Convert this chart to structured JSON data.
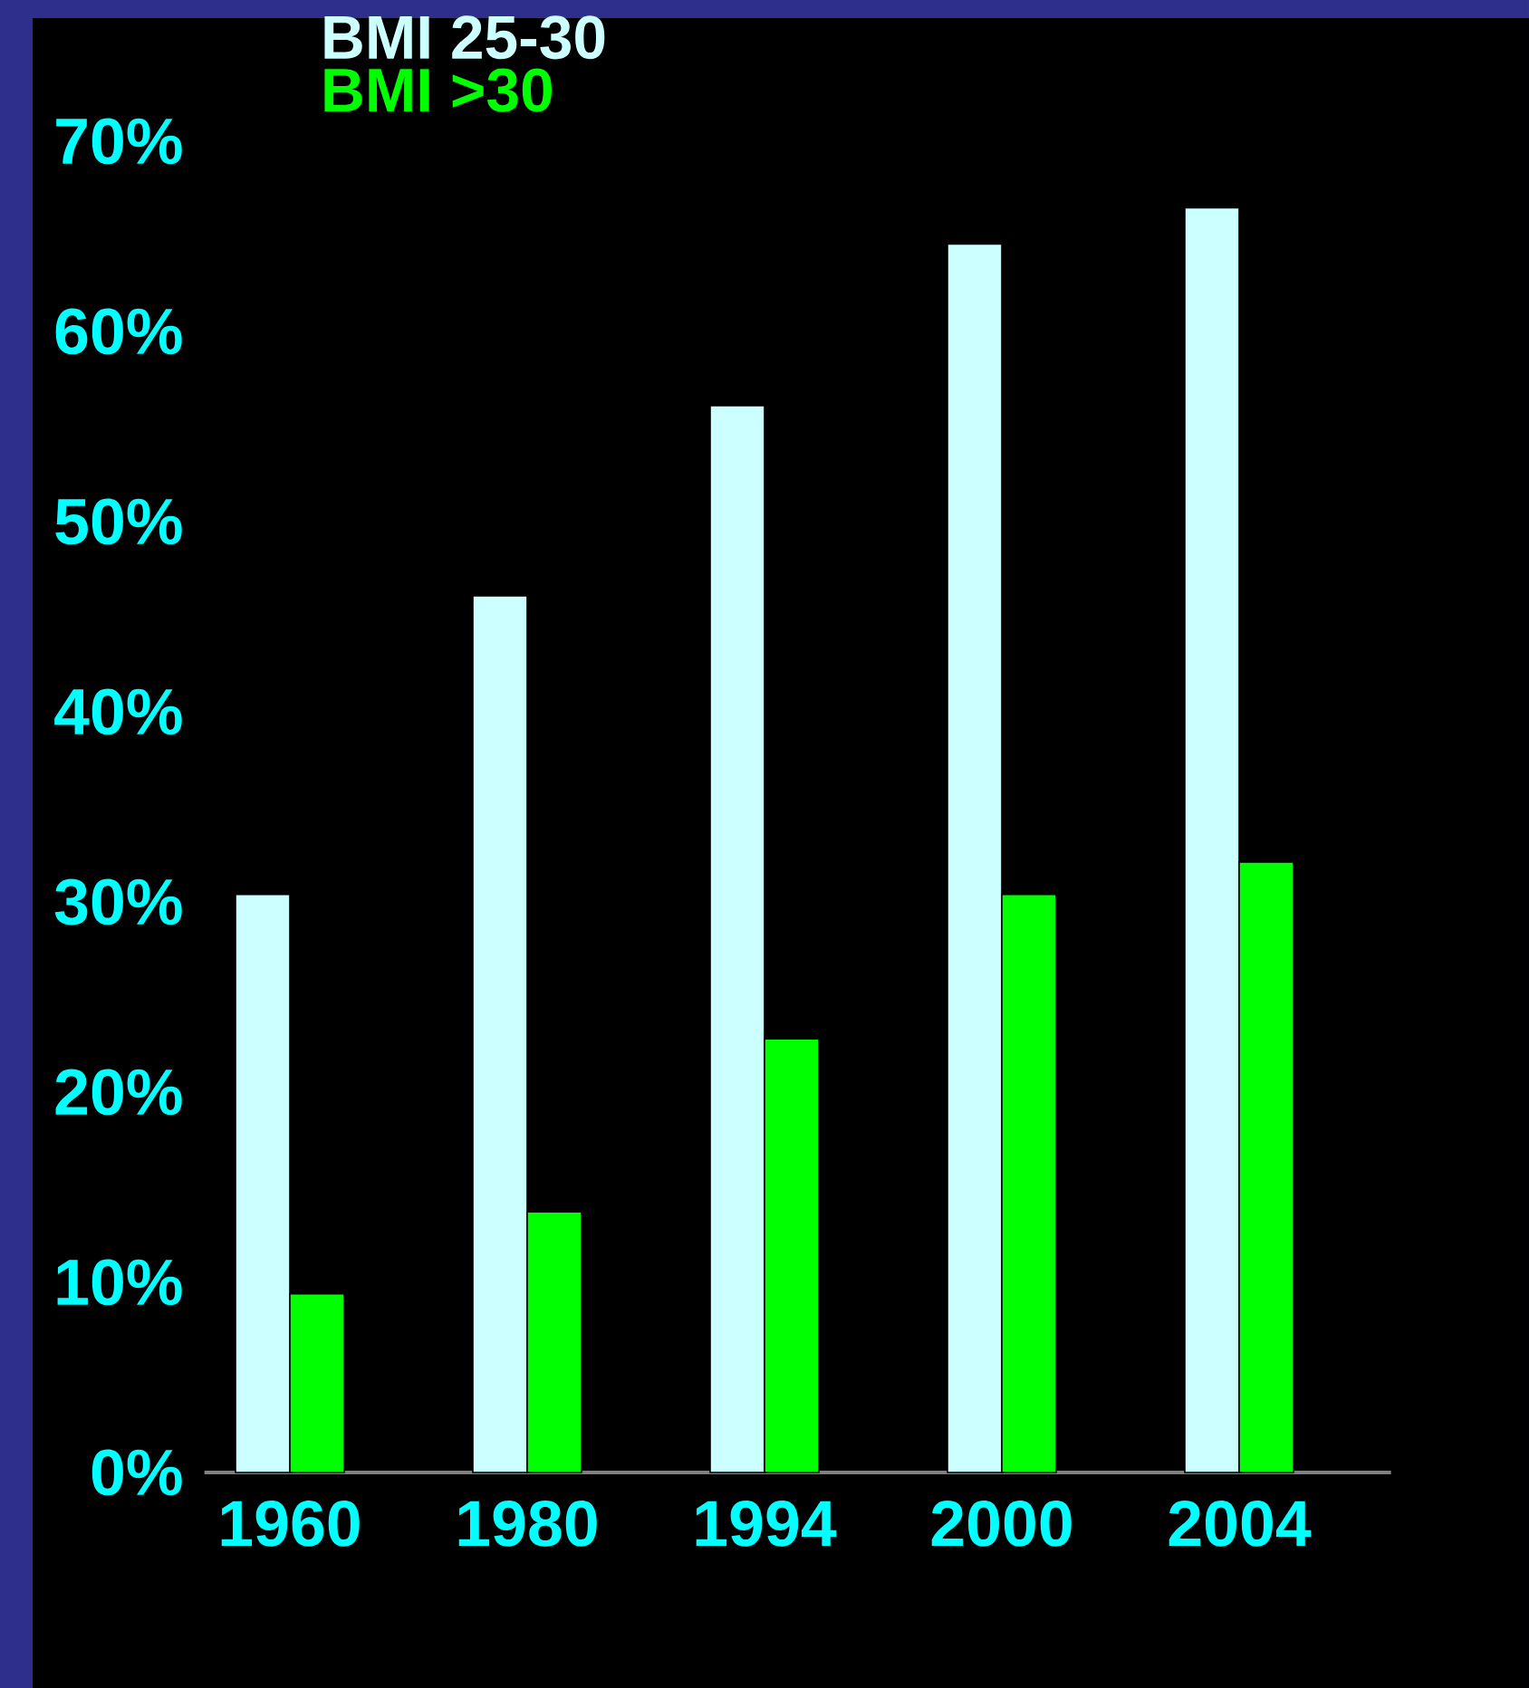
{
  "chart_data": {
    "type": "bar",
    "categories": [
      "1960",
      "1980",
      "1994",
      "2000",
      "2004"
    ],
    "series": [
      {
        "name": "BMI 25-30",
        "color": "#ccffff",
        "values": [
          30.4,
          46.1,
          56.1,
          64.6,
          66.5
        ]
      },
      {
        "name": "BMI >30",
        "color": "#00ff00",
        "values": [
          9.4,
          13.7,
          22.8,
          30.4,
          32.1
        ]
      }
    ],
    "ylim": [
      0,
      70
    ],
    "yticks": [
      {
        "value": 0,
        "label": "0%"
      },
      {
        "value": 10,
        "label": "10%"
      },
      {
        "value": 20,
        "label": "20%"
      },
      {
        "value": 30,
        "label": "30%"
      },
      {
        "value": 40,
        "label": "40%"
      },
      {
        "value": 50,
        "label": "50%"
      },
      {
        "value": 60,
        "label": "60%"
      },
      {
        "value": 70,
        "label": "70%"
      }
    ],
    "legend": "top left"
  }
}
